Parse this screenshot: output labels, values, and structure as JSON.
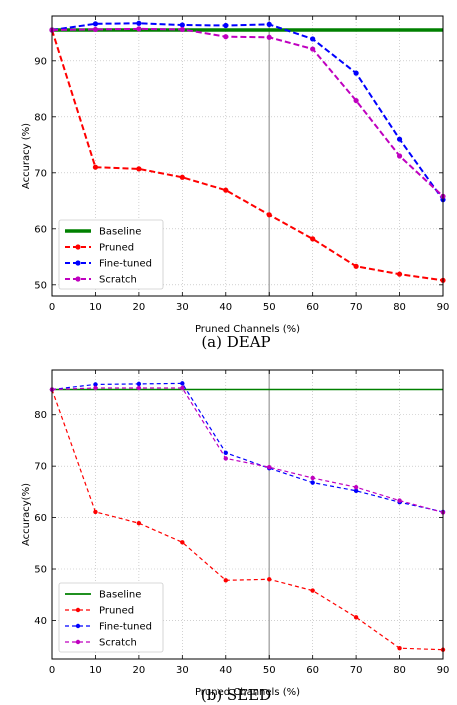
{
  "chart_data": [
    {
      "type": "line",
      "caption": "(a) DEAP",
      "xlabel": "Pruned Channels (%)",
      "ylabel": "Accuracy (%)",
      "x": [
        0,
        10,
        20,
        30,
        40,
        50,
        60,
        70,
        80,
        90
      ],
      "xlim": [
        0,
        90
      ],
      "ylim": [
        48,
        98
      ],
      "xticks": [
        0,
        10,
        20,
        30,
        40,
        50,
        60,
        70,
        80,
        90
      ],
      "yticks": [
        50,
        60,
        70,
        80,
        90
      ],
      "grid": true,
      "vline": 50,
      "legend_position": "lower-left",
      "series": [
        {
          "name": "Baseline",
          "color": "#008000",
          "style": "solid",
          "marker": false,
          "width": 3.5,
          "values": [
            95.5,
            95.5,
            95.5,
            95.5,
            95.5,
            95.5,
            95.5,
            95.5,
            95.5,
            95.5
          ]
        },
        {
          "name": "Pruned",
          "color": "#ff0000",
          "style": "dashed",
          "marker": true,
          "width": 2,
          "values": [
            95.5,
            71.0,
            70.7,
            69.2,
            66.9,
            62.5,
            58.2,
            53.3,
            51.9,
            50.8
          ]
        },
        {
          "name": "Fine-tuned",
          "color": "#0000ff",
          "style": "dashed",
          "marker": true,
          "width": 2,
          "values": [
            95.5,
            96.6,
            96.7,
            96.4,
            96.3,
            96.5,
            93.9,
            87.8,
            76.0,
            65.2
          ]
        },
        {
          "name": "Scratch",
          "color": "#bf00bf",
          "style": "dashed",
          "marker": true,
          "width": 2,
          "values": [
            95.5,
            95.6,
            95.7,
            95.6,
            94.3,
            94.2,
            92.1,
            82.9,
            73.0,
            65.8
          ]
        }
      ]
    },
    {
      "type": "line",
      "caption": "(b) SEED",
      "xlabel": "Pruned Channels (%)",
      "ylabel": "Accuracy(%)",
      "x": [
        0,
        10,
        20,
        30,
        40,
        50,
        60,
        70,
        80,
        90
      ],
      "xlim": [
        0,
        90
      ],
      "ylim": [
        32.5,
        88.7
      ],
      "xticks": [
        0,
        10,
        20,
        30,
        40,
        50,
        60,
        70,
        80,
        90
      ],
      "yticks": [
        40,
        50,
        60,
        70,
        80
      ],
      "grid": true,
      "vline": 50,
      "legend_position": "lower-left",
      "series": [
        {
          "name": "Baseline",
          "color": "#008000",
          "style": "solid",
          "marker": false,
          "width": 1.6,
          "values": [
            84.9,
            84.9,
            84.9,
            84.9,
            84.9,
            84.9,
            84.9,
            84.9,
            84.9,
            84.9
          ]
        },
        {
          "name": "Pruned",
          "color": "#ff0000",
          "style": "dashed",
          "marker": true,
          "width": 1.2,
          "values": [
            84.9,
            61.1,
            58.9,
            55.2,
            47.8,
            48.0,
            45.8,
            40.6,
            34.6,
            34.3
          ]
        },
        {
          "name": "Fine-tuned",
          "color": "#0000ff",
          "style": "dashed",
          "marker": true,
          "width": 1.2,
          "values": [
            84.9,
            85.9,
            86.0,
            86.1,
            72.6,
            69.6,
            66.8,
            65.2,
            63.0,
            61.1
          ]
        },
        {
          "name": "Scratch",
          "color": "#bf00bf",
          "style": "dashed",
          "marker": true,
          "width": 1.2,
          "values": [
            84.9,
            85.2,
            85.2,
            85.2,
            71.5,
            69.8,
            67.7,
            65.9,
            63.3,
            61.0
          ]
        }
      ]
    }
  ]
}
